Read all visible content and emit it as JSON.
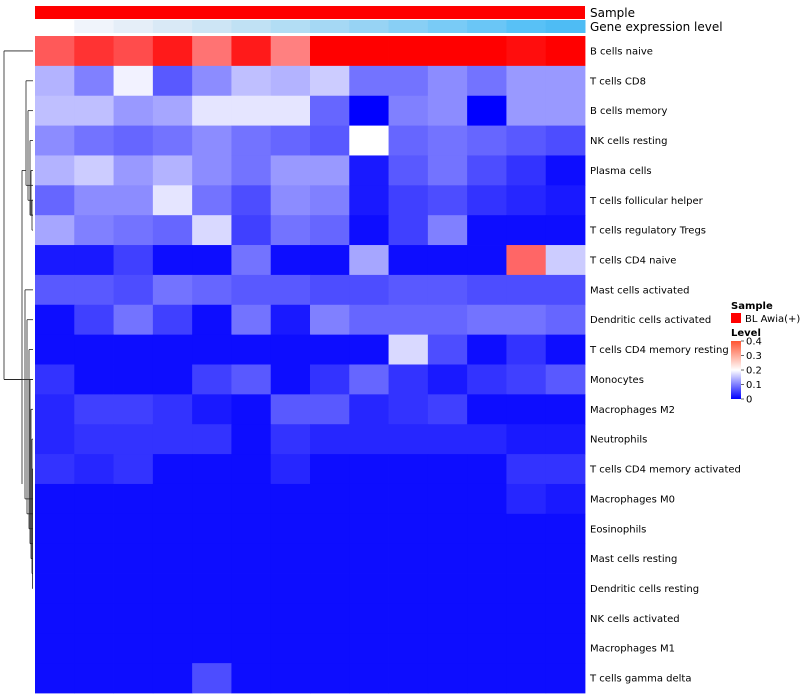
{
  "chart_data": {
    "type": "heatmap",
    "title": "",
    "annotations": {
      "sample_label": "Sample",
      "expression_label": "Gene expression level",
      "sample_color": "#ff0000",
      "expression_colors": [
        "#ffffff",
        "#f0f4fb",
        "#e5eef8",
        "#d9e9f6",
        "#cde5f5",
        "#c0e1f4",
        "#b2ddf4",
        "#a5d8f4",
        "#97d3f4",
        "#88cff5",
        "#79cbf6",
        "#6ac6f6",
        "#58c1f6",
        "#4ebcf4"
      ]
    },
    "rows": [
      "B cells naive",
      "T cells CD8",
      "B cells memory",
      "NK cells resting",
      "Plasma cells",
      "T cells follicular helper",
      "T cells regulatory  Tregs",
      "T cells CD4 naive",
      "Mast cells activated",
      "Dendritic cells activated",
      "T cells CD4 memory resting",
      "Monocytes",
      "Macrophages M2",
      "Neutrophils",
      "T cells CD4 memory activated",
      "Macrophages M0",
      "Eosinophils",
      "Mast cells resting",
      "Dendritic cells resting",
      "NK cells activated",
      "Macrophages M1",
      "T cells gamma delta"
    ],
    "n_columns": 14,
    "values": [
      [
        0.33,
        0.36,
        0.34,
        0.38,
        0.31,
        0.38,
        0.3,
        0.4,
        0.4,
        0.4,
        0.4,
        0.4,
        0.39,
        0.4
      ],
      [
        0.14,
        0.1,
        0.19,
        0.07,
        0.11,
        0.15,
        0.14,
        0.16,
        0.09,
        0.09,
        0.11,
        0.09,
        0.12,
        0.12
      ],
      [
        0.15,
        0.15,
        0.12,
        0.13,
        0.18,
        0.18,
        0.18,
        0.08,
        0.0,
        0.1,
        0.11,
        0.0,
        0.12,
        0.12
      ],
      [
        0.11,
        0.09,
        0.08,
        0.09,
        0.11,
        0.09,
        0.08,
        0.07,
        0.2,
        0.08,
        0.09,
        0.08,
        0.07,
        0.06
      ],
      [
        0.14,
        0.16,
        0.12,
        0.14,
        0.11,
        0.09,
        0.12,
        0.12,
        0.02,
        0.07,
        0.09,
        0.06,
        0.04,
        0.01
      ],
      [
        0.08,
        0.11,
        0.11,
        0.18,
        0.09,
        0.06,
        0.11,
        0.1,
        0.02,
        0.05,
        0.06,
        0.04,
        0.03,
        0.02
      ],
      [
        0.13,
        0.1,
        0.09,
        0.08,
        0.17,
        0.05,
        0.09,
        0.08,
        0.01,
        0.05,
        0.1,
        0.01,
        0.01,
        0.01
      ],
      [
        0.02,
        0.02,
        0.05,
        0.01,
        0.01,
        0.09,
        0.01,
        0.01,
        0.13,
        0.01,
        0.01,
        0.01,
        0.32,
        0.16
      ],
      [
        0.07,
        0.07,
        0.06,
        0.09,
        0.08,
        0.07,
        0.07,
        0.06,
        0.06,
        0.07,
        0.07,
        0.06,
        0.06,
        0.06
      ],
      [
        0.01,
        0.05,
        0.09,
        0.05,
        0.01,
        0.09,
        0.02,
        0.1,
        0.08,
        0.08,
        0.08,
        0.09,
        0.09,
        0.08
      ],
      [
        0.01,
        0.01,
        0.01,
        0.01,
        0.01,
        0.01,
        0.01,
        0.01,
        0.01,
        0.17,
        0.06,
        0.01,
        0.04,
        0.01
      ],
      [
        0.04,
        0.01,
        0.01,
        0.01,
        0.05,
        0.07,
        0.01,
        0.04,
        0.08,
        0.04,
        0.02,
        0.04,
        0.05,
        0.07
      ],
      [
        0.03,
        0.05,
        0.05,
        0.04,
        0.02,
        0.01,
        0.07,
        0.07,
        0.03,
        0.04,
        0.05,
        0.01,
        0.01,
        0.01
      ],
      [
        0.03,
        0.04,
        0.04,
        0.04,
        0.04,
        0.01,
        0.04,
        0.03,
        0.03,
        0.03,
        0.03,
        0.03,
        0.02,
        0.02
      ],
      [
        0.04,
        0.03,
        0.04,
        0.01,
        0.01,
        0.01,
        0.03,
        0.01,
        0.01,
        0.01,
        0.01,
        0.01,
        0.04,
        0.04
      ],
      [
        0.01,
        0.01,
        0.01,
        0.01,
        0.01,
        0.01,
        0.01,
        0.01,
        0.01,
        0.01,
        0.01,
        0.01,
        0.03,
        0.02
      ],
      [
        0.01,
        0.01,
        0.01,
        0.01,
        0.01,
        0.01,
        0.01,
        0.01,
        0.01,
        0.01,
        0.01,
        0.01,
        0.01,
        0.01
      ],
      [
        0.01,
        0.01,
        0.01,
        0.01,
        0.01,
        0.01,
        0.01,
        0.01,
        0.01,
        0.01,
        0.01,
        0.01,
        0.01,
        0.01
      ],
      [
        0.01,
        0.01,
        0.01,
        0.01,
        0.01,
        0.01,
        0.01,
        0.01,
        0.01,
        0.01,
        0.01,
        0.01,
        0.01,
        0.01
      ],
      [
        0.01,
        0.01,
        0.01,
        0.01,
        0.01,
        0.01,
        0.01,
        0.01,
        0.01,
        0.01,
        0.01,
        0.01,
        0.01,
        0.01
      ],
      [
        0.01,
        0.01,
        0.01,
        0.01,
        0.01,
        0.01,
        0.01,
        0.01,
        0.01,
        0.01,
        0.01,
        0.01,
        0.01,
        0.01
      ],
      [
        0.01,
        0.01,
        0.01,
        0.01,
        0.06,
        0.01,
        0.01,
        0.01,
        0.01,
        0.01,
        0.01,
        0.01,
        0.01,
        0.01
      ]
    ],
    "color_scale": {
      "min": 0,
      "mid": 0.2,
      "max": 0.4,
      "low_color": "#0000ff",
      "mid_color": "#ffffff",
      "high_color": "#ff0000"
    },
    "legend": {
      "sample_title": "Sample",
      "sample_entry": "BL Awia(+)",
      "level_title": "Level",
      "ticks": [
        "0.4",
        "0.3",
        "0.2",
        "0.1",
        "0"
      ],
      "tick_values": [
        0.4,
        0.3,
        0.2,
        0.1,
        0
      ],
      "placement": "right"
    }
  }
}
